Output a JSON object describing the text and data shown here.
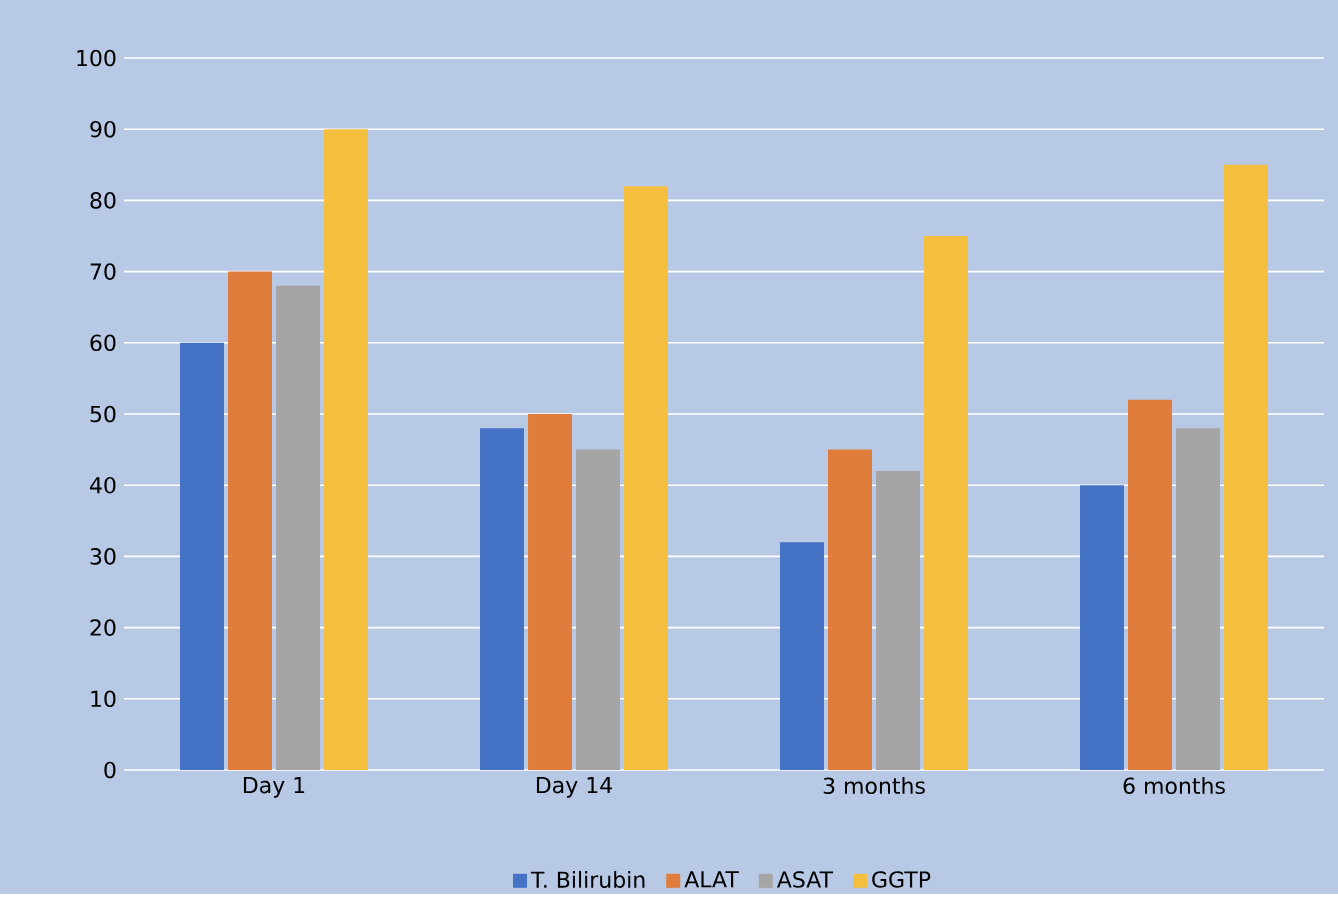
{
  "chart_data": {
    "type": "bar",
    "categories": [
      "Day 1",
      "Day 14",
      "3 months",
      "6 months"
    ],
    "series": [
      {
        "name": "T. Bilirubin",
        "color": "#4472c4",
        "values": [
          60,
          48,
          32,
          40
        ]
      },
      {
        "name": "ALAT",
        "color": "#e07d3c",
        "values": [
          70,
          50,
          45,
          52
        ]
      },
      {
        "name": "ASAT",
        "color": "#a5a5a5",
        "values": [
          68,
          45,
          42,
          48
        ]
      },
      {
        "name": "GGTP",
        "color": "#f4bf3f",
        "values": [
          90,
          82,
          75,
          85
        ]
      }
    ],
    "ylim": [
      0,
      100
    ],
    "yticks": [
      0,
      10,
      20,
      30,
      40,
      50,
      60,
      70,
      80,
      90,
      100
    ],
    "grid": "y",
    "legend": "bottom"
  }
}
